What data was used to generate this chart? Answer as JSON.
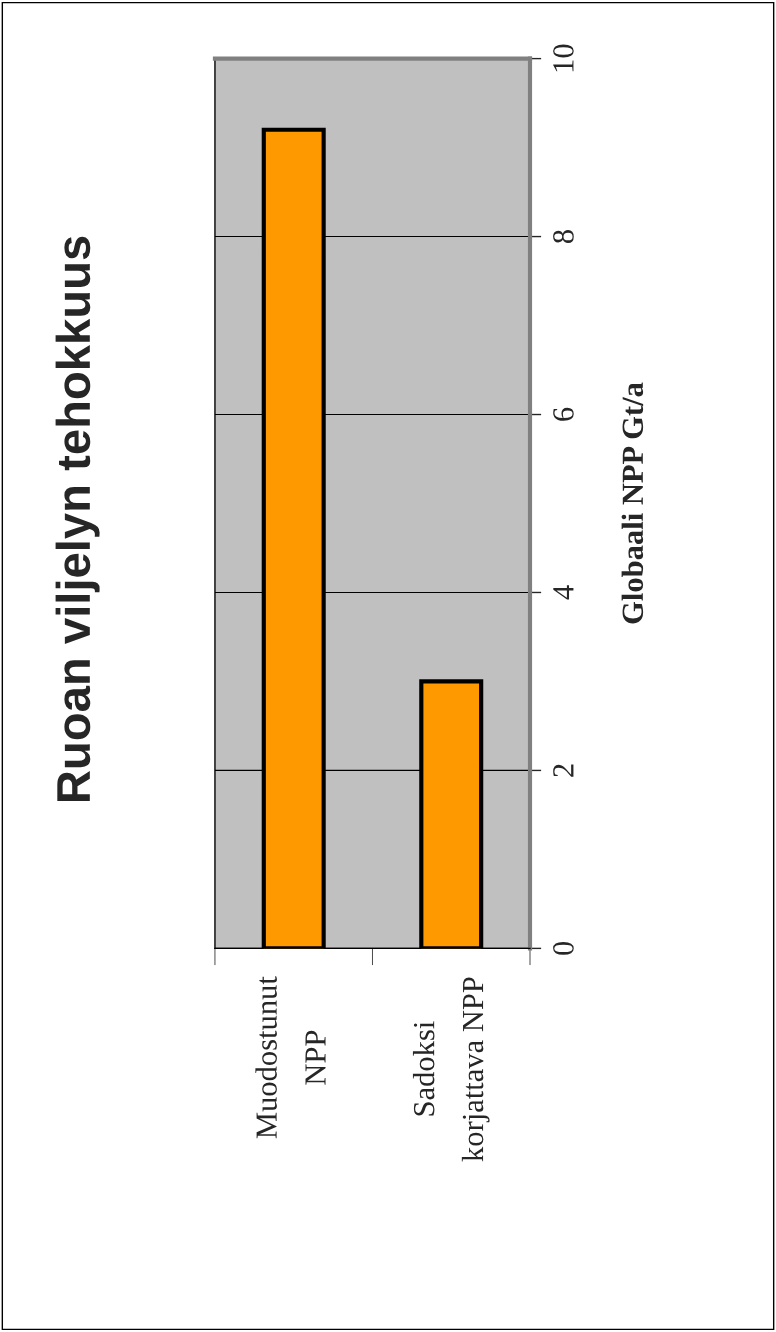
{
  "chart_data": {
    "type": "bar",
    "title": "Ruoan viljelyn tehokkuus",
    "categories": [
      "Muodostunut NPP",
      "Sadoksi korjattava NPP"
    ],
    "values": [
      9.2,
      3.0
    ],
    "color": "#ff9900",
    "ylabel": "Globaali NPP Gt/a",
    "ylim": [
      0,
      10
    ],
    "yticks": [
      0,
      2,
      4,
      6,
      8,
      10
    ],
    "grid": "y",
    "legend": false
  }
}
